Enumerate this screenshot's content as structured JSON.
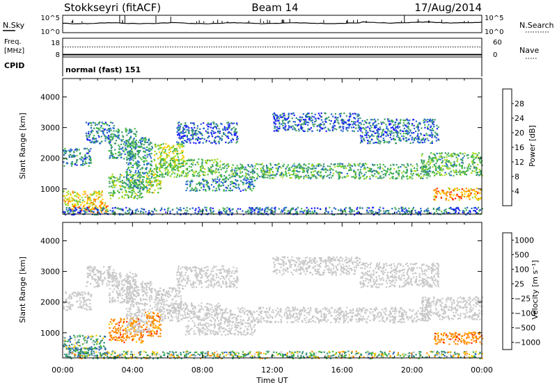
{
  "header": {
    "title": "Stokkseyri (fitACF)",
    "beam": "Beam 14",
    "date": "17/Aug/2014"
  },
  "noise_panel": {
    "left_label": "N.Sky",
    "right_label": "N.Search",
    "left_ticks": [
      "10^5",
      "10^0"
    ],
    "right_ticks": [
      "10^5",
      "10^0"
    ]
  },
  "freq_panel": {
    "left_label_line1": "Freq.",
    "left_label_line2": "[MHz]",
    "left_ticks": [
      "18",
      "8"
    ],
    "right_label": "Nave",
    "right_ticks": [
      "60",
      "0"
    ],
    "freq_mhz": 10,
    "nave": 43
  },
  "cpid": {
    "label": "CPID",
    "program": "normal (fast) 151"
  },
  "chart_data": [
    {
      "type": "heatmap",
      "quantity": "Power",
      "colorbar_label": "Power [dB]",
      "ylabel": "Slant Range [km]",
      "xlabel": "Time UT",
      "x_ticks": [
        "00:00",
        "04:00",
        "08:00",
        "12:00",
        "16:00",
        "20:00",
        "00:00"
      ],
      "x_range_hours": [
        0,
        24
      ],
      "y_ticks": [
        1000,
        2000,
        3000,
        4000
      ],
      "ylim": [
        180,
        4600
      ],
      "colorbar_ticks": [
        4,
        8,
        12,
        16,
        20,
        24,
        28
      ],
      "colorbar_range": [
        0,
        32
      ],
      "colors": [
        "#1a1aff",
        "#2266cc",
        "#3a9a6a",
        "#44bb44",
        "#aadd22",
        "#ffcc00",
        "#ff8800",
        "#ff2200"
      ],
      "regions": [
        {
          "t0": 0.0,
          "t1": 1.6,
          "r0": 1750,
          "r1": 2350,
          "value": 9
        },
        {
          "t0": 0.0,
          "t1": 2.4,
          "r0": 450,
          "r1": 950,
          "value": 21
        },
        {
          "t0": 0.4,
          "t1": 2.6,
          "r0": 250,
          "r1": 520,
          "value": 25
        },
        {
          "t0": 1.3,
          "t1": 2.9,
          "r0": 2500,
          "r1": 3200,
          "value": 8
        },
        {
          "t0": 2.6,
          "t1": 4.6,
          "r0": 700,
          "r1": 1500,
          "value": 15
        },
        {
          "t0": 2.6,
          "t1": 4.2,
          "r0": 2000,
          "r1": 3000,
          "value": 10
        },
        {
          "t0": 3.6,
          "t1": 5.1,
          "r0": 1000,
          "r1": 2700,
          "value": 10
        },
        {
          "t0": 4.7,
          "t1": 5.6,
          "r0": 900,
          "r1": 1700,
          "value": 17
        },
        {
          "t0": 5.2,
          "t1": 6.9,
          "r0": 1700,
          "r1": 2500,
          "value": 18
        },
        {
          "t0": 5.5,
          "t1": 9.0,
          "r0": 1400,
          "r1": 2000,
          "value": 14
        },
        {
          "t0": 6.5,
          "t1": 10.0,
          "r0": 2500,
          "r1": 3200,
          "value": 6
        },
        {
          "t0": 7.0,
          "t1": 11.0,
          "r0": 950,
          "r1": 1350,
          "value": 9
        },
        {
          "t0": 9.0,
          "t1": 21.0,
          "r0": 1350,
          "r1": 1850,
          "value": 12
        },
        {
          "t0": 12.0,
          "t1": 17.0,
          "r0": 2900,
          "r1": 3500,
          "value": 6
        },
        {
          "t0": 17.0,
          "t1": 21.5,
          "r0": 2500,
          "r1": 3300,
          "value": 7
        },
        {
          "t0": 20.5,
          "t1": 24.0,
          "r0": 1450,
          "r1": 2200,
          "value": 13
        },
        {
          "t0": 21.2,
          "t1": 24.0,
          "r0": 650,
          "r1": 1050,
          "value": 25
        },
        {
          "t0": 0.0,
          "t1": 24.0,
          "r0": 180,
          "r1": 420,
          "value": 7
        }
      ]
    },
    {
      "type": "heatmap",
      "quantity": "Velocity",
      "colorbar_label": "Velocity [m s⁻¹]",
      "ylabel": "Slant Range [km]",
      "xlabel": "Time UT",
      "x_ticks": [
        "00:00",
        "04:00",
        "08:00",
        "12:00",
        "16:00",
        "20:00",
        "00:00"
      ],
      "x_range_hours": [
        0,
        24
      ],
      "y_ticks": [
        1000,
        2000,
        3000,
        4000
      ],
      "ylim": [
        180,
        4600
      ],
      "colorbar_ticks": [
        "1000",
        "500",
        "100",
        "25",
        "−25",
        "−100",
        "−500",
        "−1000"
      ],
      "colors": [
        "#2233cc",
        "#2a66bb",
        "#2f8f6f",
        "#44bb33",
        "#c8c8c8",
        "#ffcc00",
        "#ff8800",
        "#ff2200"
      ],
      "regions": [
        {
          "t0": 0.0,
          "t1": 1.6,
          "r0": 1750,
          "r1": 2350,
          "value": 0
        },
        {
          "t0": 0.0,
          "t1": 2.4,
          "r0": 450,
          "r1": 950,
          "value": 150
        },
        {
          "t0": 0.3,
          "t1": 2.6,
          "r0": 250,
          "r1": 520,
          "value": 300
        },
        {
          "t0": 1.3,
          "t1": 2.9,
          "r0": 2500,
          "r1": 3200,
          "value": 0
        },
        {
          "t0": 2.6,
          "t1": 4.6,
          "r0": 700,
          "r1": 1500,
          "value": -300
        },
        {
          "t0": 2.6,
          "t1": 4.2,
          "r0": 2000,
          "r1": 3000,
          "value": 0
        },
        {
          "t0": 3.6,
          "t1": 5.1,
          "r0": 1000,
          "r1": 2700,
          "value": 0
        },
        {
          "t0": 4.7,
          "t1": 5.6,
          "r0": 900,
          "r1": 1700,
          "value": -300
        },
        {
          "t0": 5.2,
          "t1": 6.9,
          "r0": 1700,
          "r1": 2500,
          "value": 0
        },
        {
          "t0": 5.5,
          "t1": 9.0,
          "r0": 1400,
          "r1": 2000,
          "value": 0
        },
        {
          "t0": 6.5,
          "t1": 10.0,
          "r0": 2500,
          "r1": 3200,
          "value": 0
        },
        {
          "t0": 7.0,
          "t1": 11.0,
          "r0": 950,
          "r1": 1350,
          "value": 0
        },
        {
          "t0": 9.0,
          "t1": 21.0,
          "r0": 1350,
          "r1": 1850,
          "value": 0
        },
        {
          "t0": 12.0,
          "t1": 17.0,
          "r0": 2900,
          "r1": 3500,
          "value": 0
        },
        {
          "t0": 17.0,
          "t1": 21.5,
          "r0": 2500,
          "r1": 3300,
          "value": 0
        },
        {
          "t0": 20.5,
          "t1": 24.0,
          "r0": 1450,
          "r1": 2200,
          "value": 0
        },
        {
          "t0": 21.2,
          "t1": 24.0,
          "r0": 650,
          "r1": 1050,
          "value": -300
        },
        {
          "t0": 0.0,
          "t1": 24.0,
          "r0": 180,
          "r1": 420,
          "value": 80
        }
      ]
    }
  ]
}
